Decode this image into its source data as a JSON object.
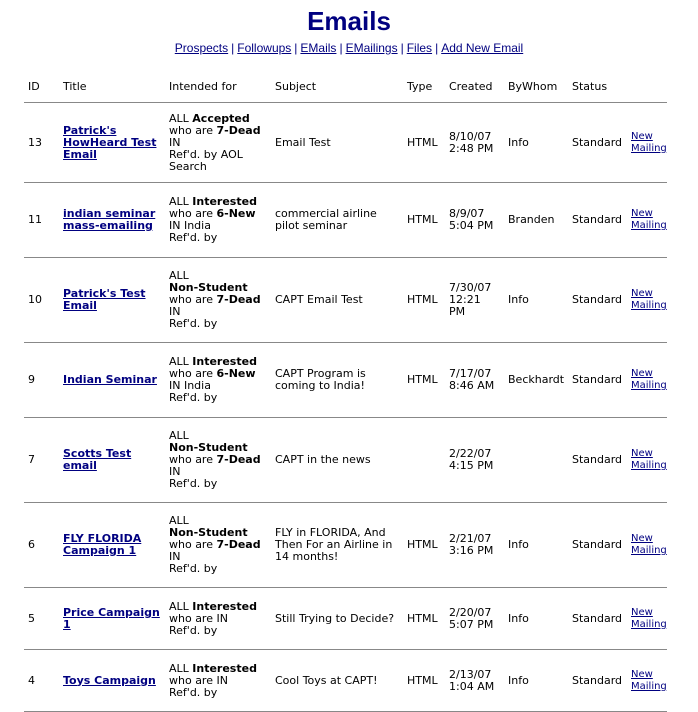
{
  "page": {
    "title": "Emails"
  },
  "nav": {
    "items": [
      "Prospects",
      "Followups",
      "EMails",
      "EMailings",
      "Files",
      "Add New Email"
    ],
    "separator": "|"
  },
  "table": {
    "columns": [
      "ID",
      "Title",
      "Intended for",
      "Subject",
      "Type",
      "Created",
      "ByWhom",
      "Status",
      ""
    ],
    "rows": [
      {
        "id": "13",
        "title_lines": [
          "Patrick's",
          "HowHeard Test",
          "Email"
        ],
        "intended_lines": [
          {
            "pre": "ALL ",
            "bold": "Accepted",
            "post": ""
          },
          {
            "pre": "who are ",
            "bold": "7-Dead",
            "post": ""
          },
          {
            "pre": "IN",
            "bold": "",
            "post": ""
          },
          {
            "pre": "Ref'd. by AOL",
            "bold": "",
            "post": ""
          },
          {
            "pre": "Search",
            "bold": "",
            "post": ""
          }
        ],
        "subject_lines": [
          "Email Test"
        ],
        "type": "HTML",
        "created_lines": [
          "8/10/07",
          "2:48 PM"
        ],
        "bywhom": "Info",
        "status": "Standard",
        "action_lines": [
          "New",
          "Mailing"
        ]
      },
      {
        "id": "11",
        "title_lines": [
          "indian seminar",
          "mass-emailing"
        ],
        "intended_lines": [
          {
            "pre": "ALL ",
            "bold": "Interested",
            "post": ""
          },
          {
            "pre": "who are ",
            "bold": "6-New",
            "post": ""
          },
          {
            "pre": "IN India",
            "bold": "",
            "post": ""
          },
          {
            "pre": "Ref'd. by",
            "bold": "",
            "post": ""
          }
        ],
        "subject_lines": [
          "commercial airline",
          "pilot seminar"
        ],
        "type": "HTML",
        "created_lines": [
          "8/9/07",
          "5:04 PM"
        ],
        "bywhom": "Branden",
        "status": "Standard",
        "action_lines": [
          "New",
          "Mailing"
        ]
      },
      {
        "id": "10",
        "title_lines": [
          "Patrick's Test",
          "Email"
        ],
        "intended_lines": [
          {
            "pre": "ALL",
            "bold": "",
            "post": ""
          },
          {
            "pre": "",
            "bold": "Non-Student",
            "post": ""
          },
          {
            "pre": "who are ",
            "bold": "7-Dead",
            "post": ""
          },
          {
            "pre": "IN",
            "bold": "",
            "post": ""
          },
          {
            "pre": "Ref'd. by",
            "bold": "",
            "post": ""
          }
        ],
        "subject_lines": [
          "CAPT Email Test"
        ],
        "type": "HTML",
        "created_lines": [
          "7/30/07",
          "12:21",
          "PM"
        ],
        "bywhom": "Info",
        "status": "Standard",
        "action_lines": [
          "New",
          "Mailing"
        ]
      },
      {
        "id": "9",
        "title_lines": [
          "Indian Seminar"
        ],
        "intended_lines": [
          {
            "pre": "ALL ",
            "bold": "Interested",
            "post": ""
          },
          {
            "pre": "who are ",
            "bold": "6-New",
            "post": ""
          },
          {
            "pre": "IN India",
            "bold": "",
            "post": ""
          },
          {
            "pre": "Ref'd. by",
            "bold": "",
            "post": ""
          }
        ],
        "subject_lines": [
          "CAPT Program is",
          "coming to India!"
        ],
        "type": "HTML",
        "created_lines": [
          "7/17/07",
          "8:46 AM"
        ],
        "bywhom": "Beckhardt",
        "status": "Standard",
        "action_lines": [
          "New",
          "Mailing"
        ]
      },
      {
        "id": "7",
        "title_lines": [
          "Scotts Test",
          "email"
        ],
        "intended_lines": [
          {
            "pre": "ALL",
            "bold": "",
            "post": ""
          },
          {
            "pre": "",
            "bold": "Non-Student",
            "post": ""
          },
          {
            "pre": "who are ",
            "bold": "7-Dead",
            "post": ""
          },
          {
            "pre": "IN",
            "bold": "",
            "post": ""
          },
          {
            "pre": "Ref'd. by",
            "bold": "",
            "post": ""
          }
        ],
        "subject_lines": [
          "CAPT in the news"
        ],
        "type": "",
        "created_lines": [
          "2/22/07",
          "4:15 PM"
        ],
        "bywhom": "",
        "status": "Standard",
        "action_lines": [
          "New",
          "Mailing"
        ]
      },
      {
        "id": "6",
        "title_lines": [
          "FLY FLORIDA",
          "Campaign 1"
        ],
        "intended_lines": [
          {
            "pre": "ALL",
            "bold": "",
            "post": ""
          },
          {
            "pre": "",
            "bold": "Non-Student",
            "post": ""
          },
          {
            "pre": "who are ",
            "bold": "7-Dead",
            "post": ""
          },
          {
            "pre": "IN",
            "bold": "",
            "post": ""
          },
          {
            "pre": "Ref'd. by",
            "bold": "",
            "post": ""
          }
        ],
        "subject_lines": [
          "FLY in FLORIDA, And",
          "Then For an Airline in",
          "14 months!"
        ],
        "type": "HTML",
        "created_lines": [
          "2/21/07",
          "3:16 PM"
        ],
        "bywhom": "Info",
        "status": "Standard",
        "action_lines": [
          "New",
          "Mailing"
        ]
      },
      {
        "id": "5",
        "title_lines": [
          "Price Campaign",
          "1"
        ],
        "intended_lines": [
          {
            "pre": "ALL ",
            "bold": "Interested",
            "post": ""
          },
          {
            "pre": "who are IN",
            "bold": "",
            "post": ""
          },
          {
            "pre": "Ref'd. by",
            "bold": "",
            "post": ""
          }
        ],
        "subject_lines": [
          "Still Trying to Decide?"
        ],
        "type": "HTML",
        "created_lines": [
          "2/20/07",
          "5:07 PM"
        ],
        "bywhom": "Info",
        "status": "Standard",
        "action_lines": [
          "New",
          "Mailing"
        ]
      },
      {
        "id": "4",
        "title_lines": [
          "Toys Campaign"
        ],
        "intended_lines": [
          {
            "pre": "ALL ",
            "bold": "Interested",
            "post": ""
          },
          {
            "pre": "who are IN",
            "bold": "",
            "post": ""
          },
          {
            "pre": "Ref'd. by",
            "bold": "",
            "post": ""
          }
        ],
        "subject_lines": [
          "Cool Toys at CAPT!"
        ],
        "type": "HTML",
        "created_lines": [
          "2/13/07",
          "1:04 AM"
        ],
        "bywhom": "Info",
        "status": "Standard",
        "action_lines": [
          "New",
          "Mailing"
        ]
      }
    ]
  },
  "colors": {
    "link": "#000080",
    "title": "#000080",
    "rule": "#888888"
  }
}
